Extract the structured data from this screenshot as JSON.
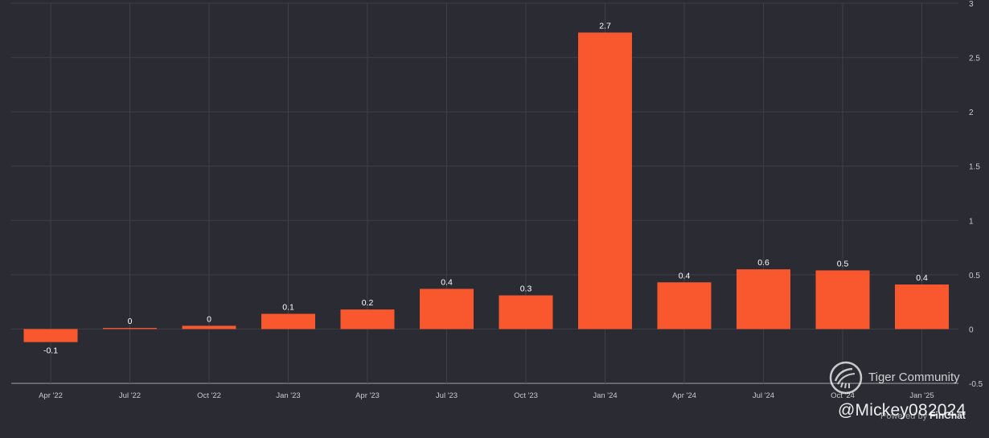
{
  "colors": {
    "background": "#2b2b33",
    "bar": "#f9582f",
    "grid": "#3f3f48",
    "axis_text": "#c9c9cf",
    "label_text": "#ffffff"
  },
  "chart_data": {
    "type": "bar",
    "title": "",
    "xlabel": "",
    "ylabel": "",
    "categories": [
      "Apr '22",
      "Jul '22",
      "Oct '22",
      "Jan '23",
      "Apr '23",
      "Jul '23",
      "Oct '23",
      "Jan '24",
      "Apr '24",
      "Jul '24",
      "Oct '24",
      "Jan '25"
    ],
    "values": [
      -0.12,
      0.01,
      0.03,
      0.14,
      0.18,
      0.37,
      0.31,
      2.73,
      0.43,
      0.55,
      0.54,
      0.41
    ],
    "data_labels": [
      "-0.1",
      "0",
      "0",
      "0.1",
      "0.2",
      "0.4",
      "0.3",
      "2.7",
      "0.4",
      "0.6",
      "0.5",
      "0.4"
    ],
    "ylim": [
      -0.5,
      3
    ],
    "yticks": [
      -0.5,
      0,
      0.5,
      1,
      1.5,
      2,
      2.5,
      3
    ],
    "ytick_labels": [
      "-0.5",
      "0",
      "0.5",
      "1",
      "1.5",
      "2",
      "2.5",
      "3"
    ],
    "y_axis_side": "right",
    "grid": true
  },
  "watermark": {
    "community": "Tiger Community",
    "handle": "@Mickey082024",
    "powered_prefix": "Powered by",
    "powered_brand": "FinChat"
  }
}
